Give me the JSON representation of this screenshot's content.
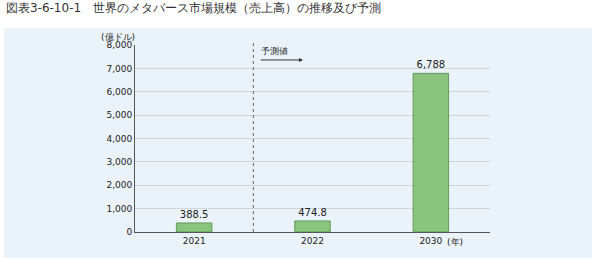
{
  "chart_data": {
    "type": "bar",
    "title": "図表3-6-10-1　世界のメタバース市場規模（売上高）の推移及び予測",
    "ylabel": "(億ドル)",
    "xlabel": "(年)",
    "annotation": "予測値",
    "categories": [
      "2021",
      "2022",
      "2030"
    ],
    "values": [
      388.5,
      474.8,
      6788
    ],
    "value_labels": [
      "388.5",
      "474.8",
      "6,788"
    ],
    "data_labels": true,
    "color": "#8bc47f",
    "ylim": [
      0,
      8000
    ],
    "yticks": [
      0,
      {
        "value": 1000,
        "label": "1,000"
      },
      {
        "value": 2000,
        "label": "2,000"
      },
      {
        "value": 3000,
        "label": "3,000"
      },
      {
        "value": 4000,
        "label": "4,000"
      },
      {
        "value": 5000,
        "label": "5,000"
      },
      {
        "value": 6000,
        "label": "6,000"
      },
      {
        "value": 7000,
        "label": "7,000"
      },
      {
        "value": 8000,
        "label": "8,000"
      }
    ],
    "grid": true
  }
}
